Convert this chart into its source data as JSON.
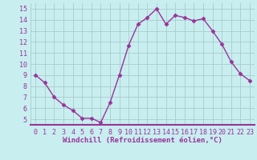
{
  "x": [
    0,
    1,
    2,
    3,
    4,
    5,
    6,
    7,
    8,
    9,
    10,
    11,
    12,
    13,
    14,
    15,
    16,
    17,
    18,
    19,
    20,
    21,
    22,
    23
  ],
  "y": [
    9.0,
    8.3,
    7.0,
    6.3,
    5.8,
    5.1,
    5.1,
    4.7,
    6.5,
    9.0,
    11.7,
    13.6,
    14.2,
    15.0,
    13.6,
    14.4,
    14.2,
    13.9,
    14.1,
    13.0,
    11.8,
    10.2,
    9.1,
    8.5
  ],
  "line_color": "#993399",
  "marker": "D",
  "markersize": 2.5,
  "linewidth": 1.0,
  "xlabel": "Windchill (Refroidissement éolien,°C)",
  "xlabel_fontsize": 6.5,
  "xlim": [
    -0.5,
    23.5
  ],
  "ylim": [
    4.5,
    15.5
  ],
  "yticks": [
    5,
    6,
    7,
    8,
    9,
    10,
    11,
    12,
    13,
    14,
    15
  ],
  "xticks": [
    0,
    1,
    2,
    3,
    4,
    5,
    6,
    7,
    8,
    9,
    10,
    11,
    12,
    13,
    14,
    15,
    16,
    17,
    18,
    19,
    20,
    21,
    22,
    23
  ],
  "background_color": "#c8eef0",
  "grid_color": "#aacccc",
  "tick_fontsize": 6.0,
  "tick_label_color": "#993399",
  "border_color": "#993399"
}
